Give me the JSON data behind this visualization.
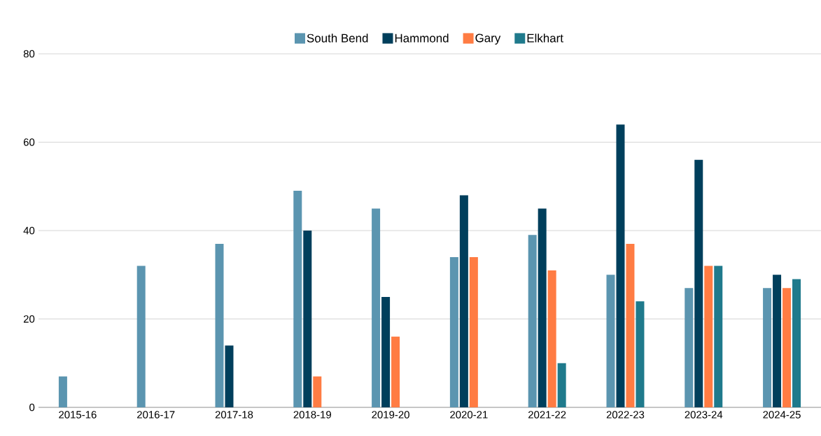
{
  "chart_data": {
    "type": "bar",
    "categories": [
      "2015-16",
      "2016-17",
      "2017-18",
      "2018-19",
      "2019-20",
      "2020-21",
      "2021-22",
      "2022-23",
      "2023-24",
      "2024-25"
    ],
    "series": [
      {
        "name": "South Bend",
        "color": "#5b95b0",
        "values": [
          7,
          32,
          37,
          49,
          45,
          34,
          39,
          30,
          27,
          27
        ]
      },
      {
        "name": "Hammond",
        "color": "#003f5c",
        "values": [
          null,
          null,
          14,
          40,
          25,
          48,
          45,
          64,
          56,
          30
        ]
      },
      {
        "name": "Gary",
        "color": "#ff7c43",
        "values": [
          null,
          null,
          null,
          7,
          16,
          34,
          31,
          37,
          32,
          27
        ]
      },
      {
        "name": "Elkhart",
        "color": "#1f7a8c",
        "values": [
          null,
          null,
          null,
          null,
          null,
          null,
          10,
          24,
          32,
          29
        ]
      }
    ],
    "ylim": [
      0,
      80
    ],
    "yticks": [
      0,
      20,
      40,
      60,
      80
    ],
    "grid": "y",
    "legend": "top"
  }
}
